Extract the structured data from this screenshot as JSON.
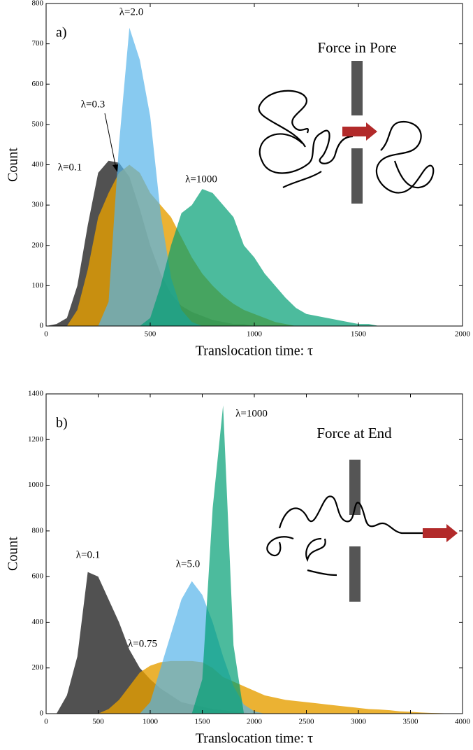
{
  "chart_data": [
    {
      "type": "area",
      "panel_label": "a)",
      "inset_title": "Force in Pore",
      "xlabel": "Translocation time: τ",
      "ylabel": "Count",
      "xlim": [
        0,
        2000
      ],
      "xticks": [
        0,
        500,
        1000,
        1500,
        2000
      ],
      "ylim": [
        0,
        800
      ],
      "yticks": [
        0,
        100,
        200,
        300,
        400,
        500,
        600,
        700,
        800
      ],
      "x": [
        0,
        50,
        100,
        150,
        200,
        250,
        300,
        350,
        400,
        450,
        500,
        550,
        600,
        650,
        700,
        750,
        800,
        850,
        900,
        950,
        1000,
        1050,
        1100,
        1150,
        1200,
        1250,
        1300,
        1350,
        1400,
        1450,
        1500,
        1550,
        1600,
        1650
      ],
      "series": [
        {
          "name": "λ=0.1",
          "color": "#333333",
          "values": [
            0,
            5,
            20,
            100,
            250,
            380,
            410,
            405,
            370,
            290,
            200,
            130,
            80,
            50,
            35,
            25,
            15,
            10,
            5,
            5,
            0,
            0,
            0,
            0,
            0,
            0,
            0,
            0,
            0,
            0,
            0,
            0,
            0,
            0
          ]
        },
        {
          "name": "λ=0.3",
          "color": "#e69f00",
          "values": [
            0,
            0,
            0,
            40,
            140,
            270,
            330,
            380,
            400,
            380,
            330,
            300,
            270,
            220,
            170,
            130,
            100,
            75,
            55,
            40,
            30,
            20,
            10,
            5,
            0,
            0,
            0,
            0,
            0,
            0,
            0,
            0,
            0,
            0
          ]
        },
        {
          "name": "λ=2.0",
          "color": "#56b4e9",
          "values": [
            0,
            0,
            0,
            0,
            0,
            0,
            60,
            450,
            740,
            660,
            520,
            280,
            120,
            40,
            10,
            0,
            0,
            0,
            0,
            0,
            0,
            0,
            0,
            0,
            0,
            0,
            0,
            0,
            0,
            0,
            0,
            0,
            0,
            0
          ]
        },
        {
          "name": "λ=1000",
          "color": "#009e73",
          "values": [
            0,
            0,
            0,
            0,
            0,
            0,
            0,
            0,
            0,
            0,
            20,
            100,
            200,
            280,
            300,
            340,
            330,
            300,
            270,
            200,
            170,
            130,
            100,
            70,
            45,
            30,
            25,
            20,
            15,
            10,
            5,
            5,
            0,
            0
          ]
        }
      ]
    },
    {
      "type": "area",
      "panel_label": "b)",
      "inset_title": "Force at End",
      "xlabel": "Translocation time: τ",
      "ylabel": "Count",
      "xlim": [
        0,
        4000
      ],
      "xticks": [
        0,
        500,
        1000,
        1500,
        2000,
        2500,
        3000,
        3500,
        4000
      ],
      "ylim": [
        0,
        1400
      ],
      "yticks": [
        0,
        200,
        400,
        600,
        800,
        1000,
        1200,
        1400
      ],
      "x": [
        0,
        100,
        200,
        300,
        400,
        500,
        600,
        700,
        800,
        900,
        1000,
        1100,
        1200,
        1300,
        1400,
        1500,
        1600,
        1700,
        1800,
        1900,
        2000,
        2100,
        2200,
        2300,
        2400,
        2500,
        2600,
        2700,
        2800,
        2900,
        3000,
        3100,
        3200,
        3300,
        3400,
        3500,
        3600,
        3700,
        3800,
        3900,
        4000
      ],
      "series": [
        {
          "name": "λ=0.1",
          "color": "#333333",
          "values": [
            0,
            0,
            80,
            250,
            620,
            600,
            500,
            400,
            280,
            200,
            150,
            110,
            80,
            50,
            40,
            30,
            20,
            15,
            10,
            5,
            0,
            0,
            0,
            0,
            0,
            0,
            0,
            0,
            0,
            0,
            0,
            0,
            0,
            0,
            0,
            0,
            0,
            0,
            0,
            0,
            0
          ]
        },
        {
          "name": "λ=0.75",
          "color": "#e69f00",
          "values": [
            0,
            0,
            0,
            0,
            0,
            0,
            20,
            60,
            120,
            180,
            210,
            225,
            230,
            230,
            230,
            225,
            200,
            160,
            140,
            120,
            100,
            80,
            70,
            60,
            55,
            50,
            45,
            40,
            35,
            30,
            25,
            20,
            18,
            15,
            10,
            8,
            5,
            3,
            2,
            0,
            0
          ]
        },
        {
          "name": "λ=5.0",
          "color": "#56b4e9",
          "values": [
            0,
            0,
            0,
            0,
            0,
            0,
            0,
            0,
            0,
            0,
            50,
            200,
            350,
            500,
            580,
            520,
            400,
            250,
            120,
            40,
            10,
            0,
            0,
            0,
            0,
            0,
            0,
            0,
            0,
            0,
            0,
            0,
            0,
            0,
            0,
            0,
            0,
            0,
            0,
            0,
            0
          ]
        },
        {
          "name": "λ=1000",
          "color": "#009e73",
          "values": [
            0,
            0,
            0,
            0,
            0,
            0,
            0,
            0,
            0,
            0,
            0,
            0,
            0,
            0,
            0,
            150,
            900,
            1350,
            300,
            0,
            0,
            0,
            0,
            0,
            0,
            0,
            0,
            0,
            0,
            0,
            0,
            0,
            0,
            0,
            0,
            0,
            0,
            0,
            0,
            0,
            0
          ]
        }
      ]
    }
  ]
}
